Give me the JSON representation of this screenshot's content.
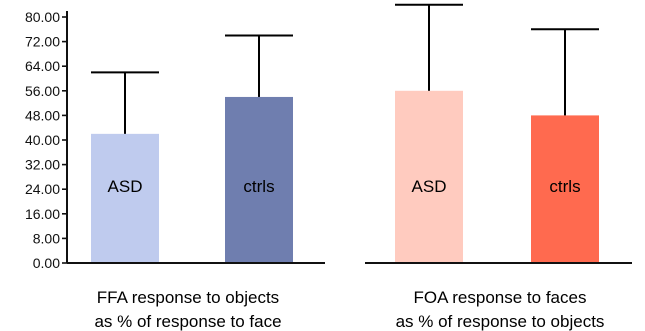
{
  "chart_data": [
    {
      "type": "bar",
      "categories": [
        "ASD",
        "ctrls"
      ],
      "values": [
        42,
        54
      ],
      "error_upper": [
        62,
        74
      ],
      "colors": [
        "#bfcbee",
        "#6f7eaf"
      ],
      "ylim": [
        0,
        80
      ],
      "yticks": [
        "0.00",
        "8.00",
        "16.00",
        "24.00",
        "32.00",
        "40.00",
        "48.00",
        "56.00",
        "64.00",
        "72.00",
        "80.00"
      ],
      "caption": [
        "FFA response to objects",
        "as % of response to face"
      ]
    },
    {
      "type": "bar",
      "categories": [
        "ASD",
        "ctrls"
      ],
      "values": [
        56,
        48
      ],
      "error_upper": [
        84,
        76
      ],
      "colors": [
        "#ffcbbf",
        "#ff6a4f"
      ],
      "ylim": [
        0,
        80
      ],
      "caption": [
        "FOA response to faces",
        "as % of response to objects"
      ]
    }
  ]
}
